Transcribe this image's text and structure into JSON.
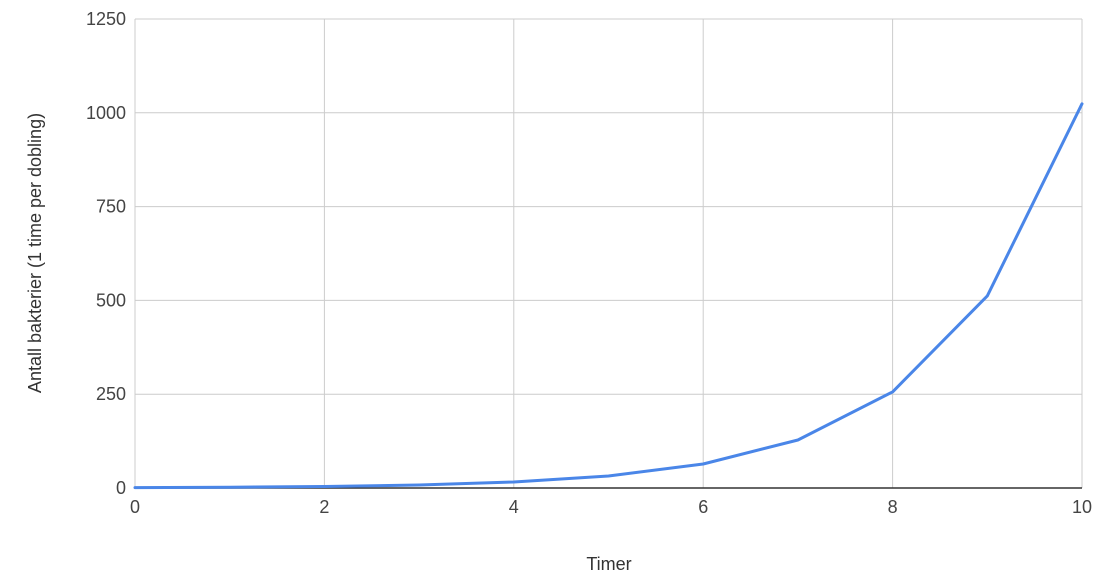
{
  "chart_data": {
    "type": "line",
    "title": "",
    "xlabel": "Timer",
    "ylabel": "Antall bakterier (1 time per dobling)",
    "x": [
      0,
      1,
      2,
      3,
      4,
      5,
      6,
      7,
      8,
      9,
      10
    ],
    "series": [
      {
        "values": [
          1,
          2,
          4,
          8,
          16,
          32,
          64,
          128,
          256,
          512,
          1024
        ],
        "color": "#4a86e8"
      }
    ],
    "xlim": [
      0,
      10
    ],
    "ylim": [
      0,
      1250
    ],
    "xticks": [
      0,
      2,
      4,
      6,
      8,
      10
    ],
    "yticks": [
      0,
      250,
      500,
      750,
      1000,
      1250
    ],
    "xtick_labels": [
      "0",
      "2",
      "4",
      "6",
      "8",
      "10"
    ],
    "ytick_labels": [
      "0",
      "250",
      "500",
      "750",
      "1000",
      "1250"
    ],
    "grid": true,
    "legend": "none",
    "colors": {
      "grid": "#cccccc",
      "axis": "#333333",
      "line": "#4a86e8"
    }
  }
}
